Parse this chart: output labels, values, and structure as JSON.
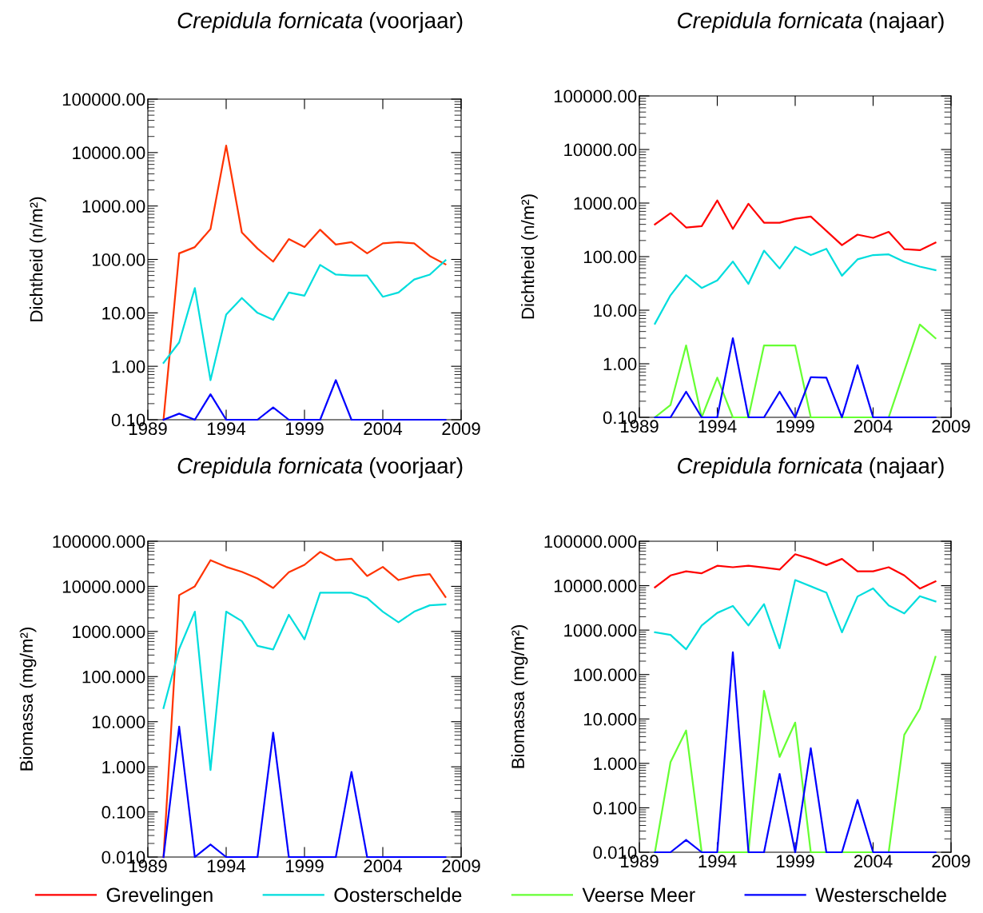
{
  "chart_data": [
    {
      "type": "line",
      "title": "Crepidula fornicata (voorjaar)",
      "ylabel": "Dichtheid (n/m²)",
      "log": "y",
      "xlim": [
        1989,
        2009
      ],
      "xticks": [
        1989,
        1994,
        1999,
        2004,
        2009
      ],
      "ylim": [
        0.1,
        100000
      ],
      "yticks": [
        {
          "value": 0.1,
          "label": "0.10"
        },
        {
          "value": 1,
          "label": "1.00"
        },
        {
          "value": 10,
          "label": "10.00"
        },
        {
          "value": 100,
          "label": "100.00"
        },
        {
          "value": 1000,
          "label": "1000.00"
        },
        {
          "value": 10000,
          "label": "10000.00"
        },
        {
          "value": 100000,
          "label": "100000.00"
        }
      ],
      "grid": false,
      "x": [
        1990,
        1991,
        1992,
        1993,
        1994,
        1995,
        1996,
        1997,
        1998,
        1999,
        2000,
        2001,
        2002,
        2003,
        2004,
        2005,
        2006,
        2007,
        2008
      ],
      "series": [
        {
          "color": "#ff3300",
          "values": [
            0.1,
            130,
            170,
            370,
            13500,
            320,
            160,
            91,
            240,
            170,
            360,
            190,
            210,
            130,
            200,
            210,
            200,
            116,
            81
          ]
        },
        {
          "color": "#00dddd",
          "values": [
            1.16,
            2.8,
            29,
            0.55,
            9.3,
            19,
            10,
            7.4,
            24,
            21,
            79,
            52,
            50,
            50,
            20,
            24,
            42,
            52,
            96
          ]
        },
        {
          "color": "#0000ff",
          "values": [
            0.1,
            0.13,
            0.1,
            0.3,
            0.1,
            0.1,
            0.1,
            0.17,
            0.1,
            0.1,
            0.1,
            0.55,
            0.1,
            0.1,
            0.1,
            0.1,
            0.1,
            0.1,
            0.1
          ]
        }
      ]
    },
    {
      "type": "line",
      "title": "Crepidula fornicata (najaar)",
      "ylabel": "Dichtheid (n/m²)",
      "log": "y",
      "xlim": [
        1989,
        2009
      ],
      "xticks": [
        1989,
        1994,
        1999,
        2004,
        2009
      ],
      "ylim": [
        0.1,
        100000
      ],
      "yticks": [
        {
          "value": 0.1,
          "label": "0.10"
        },
        {
          "value": 1,
          "label": "1.00"
        },
        {
          "value": 10,
          "label": "10.00"
        },
        {
          "value": 100,
          "label": "100.00"
        },
        {
          "value": 1000,
          "label": "1000.00"
        },
        {
          "value": 10000,
          "label": "10000.00"
        },
        {
          "value": 100000,
          "label": "100000.00"
        }
      ],
      "grid": false,
      "x": [
        1990,
        1991,
        1992,
        1993,
        1994,
        1995,
        1996,
        1997,
        1998,
        1999,
        2000,
        2001,
        2002,
        2003,
        2004,
        2005,
        2006,
        2007,
        2008
      ],
      "series": [
        {
          "color": "#ff0000",
          "x": [
            1990,
            1991,
            1992,
            1993,
            1994,
            1995,
            1996,
            1997,
            1998,
            1999,
            2000,
            2002,
            2003,
            2004,
            2005,
            2006,
            2007,
            2008
          ],
          "values": [
            400,
            650,
            350,
            370,
            1120,
            330,
            970,
            430,
            430,
            510,
            560,
            164,
            257,
            224,
            290,
            138,
            132,
            182
          ]
        },
        {
          "color": "#00dddd",
          "values": [
            5.6,
            19,
            45,
            26,
            36,
            81,
            31,
            129,
            60,
            153,
            107,
            140,
            44,
            89,
            107,
            110,
            80,
            65,
            56
          ]
        },
        {
          "color": "#66ff33",
          "x": [
            1990,
            1991,
            1992,
            1993,
            1994,
            1995,
            1996,
            1997,
            1998,
            1999,
            2000,
            2001,
            2002,
            2003,
            2004,
            2005,
            2007,
            2008
          ],
          "values": [
            0.1,
            0.17,
            2.2,
            0.1,
            0.55,
            0.1,
            0.1,
            2.2,
            2.2,
            2.2,
            0.1,
            0.1,
            0.1,
            0.1,
            0.1,
            0.1,
            5.4,
            3.0
          ]
        },
        {
          "color": "#0000ff",
          "values": [
            0.1,
            0.1,
            0.3,
            0.1,
            0.1,
            3.0,
            0.1,
            0.1,
            0.3,
            0.1,
            0.56,
            0.55,
            0.1,
            0.94,
            0.1,
            0.1,
            0.1,
            0.1,
            0.1
          ]
        }
      ]
    },
    {
      "type": "line",
      "title": "Crepidula fornicata (voorjaar)",
      "ylabel": "Biomassa (mg/m²)",
      "log": "y",
      "xlim": [
        1989,
        2009
      ],
      "xticks": [
        1989,
        1994,
        1999,
        2004,
        2009
      ],
      "ylim": [
        0.01,
        100000
      ],
      "yticks": [
        {
          "value": 0.01,
          "label": "0.010"
        },
        {
          "value": 0.1,
          "label": "0.100"
        },
        {
          "value": 1,
          "label": "1.000"
        },
        {
          "value": 10,
          "label": "10.000"
        },
        {
          "value": 100,
          "label": "100.000"
        },
        {
          "value": 1000,
          "label": "1000.000"
        },
        {
          "value": 10000,
          "label": "10000.000"
        },
        {
          "value": 100000,
          "label": "100000.000"
        }
      ],
      "grid": false,
      "x": [
        1990,
        1991,
        1992,
        1993,
        1994,
        1995,
        1996,
        1997,
        1998,
        1999,
        2000,
        2001,
        2002,
        2003,
        2004,
        2005,
        2006,
        2007,
        2008
      ],
      "series": [
        {
          "color": "#ff3300",
          "values": [
            0.01,
            6400,
            10000,
            38000,
            27000,
            21000,
            15000,
            9200,
            20500,
            30000,
            58000,
            38000,
            41000,
            17000,
            27000,
            13800,
            17000,
            18600,
            5800
          ]
        },
        {
          "color": "#00dddd",
          "values": [
            20,
            410,
            2750,
            0.85,
            2750,
            1700,
            480,
            400,
            2340,
            670,
            7200,
            7200,
            7200,
            5500,
            2750,
            1600,
            2750,
            3800,
            4000
          ]
        },
        {
          "color": "#0000ff",
          "values": [
            0.01,
            7.8,
            0.01,
            0.019,
            0.01,
            0.01,
            0.01,
            5.7,
            0.01,
            0.01,
            0.01,
            0.01,
            0.77,
            0.01,
            0.01,
            0.01,
            0.01,
            0.01,
            0.01
          ]
        }
      ]
    },
    {
      "type": "line",
      "title": "Crepidula fornicata (najaar)",
      "ylabel": "Biomassa (mg/m²)",
      "log": "y",
      "xlim": [
        1989,
        2009
      ],
      "xticks": [
        1989,
        1994,
        1999,
        2004,
        2009
      ],
      "ylim": [
        0.01,
        100000
      ],
      "yticks": [
        {
          "value": 0.01,
          "label": "0.010"
        },
        {
          "value": 0.1,
          "label": "0.100"
        },
        {
          "value": 1,
          "label": "1.000"
        },
        {
          "value": 10,
          "label": "10.000"
        },
        {
          "value": 100,
          "label": "100.000"
        },
        {
          "value": 1000,
          "label": "1000.000"
        },
        {
          "value": 10000,
          "label": "10000.000"
        },
        {
          "value": 100000,
          "label": "100000.000"
        }
      ],
      "grid": false,
      "legend": "bottom",
      "x": [
        1990,
        1991,
        1992,
        1993,
        1994,
        1995,
        1996,
        1997,
        1998,
        1999,
        2000,
        2001,
        2002,
        2003,
        2004,
        2005,
        2006,
        2007,
        2008
      ],
      "series": [
        {
          "name": "Grevelingen",
          "color": "#ff0000",
          "values": [
            9200,
            17000,
            21000,
            19000,
            28000,
            26000,
            28000,
            25700,
            23000,
            51000,
            40000,
            29000,
            40000,
            21000,
            21000,
            26000,
            17000,
            8600,
            12500
          ]
        },
        {
          "name": "Oosterschelde",
          "color": "#00dddd",
          "x": [
            1990,
            1991,
            1992,
            1993,
            1994,
            1995,
            1996,
            1997,
            1998,
            1999,
            2001,
            2002,
            2003,
            2004,
            2005,
            2006,
            2007,
            2008
          ],
          "values": [
            890,
            780,
            370,
            1270,
            2440,
            3500,
            1270,
            3850,
            390,
            13400,
            7000,
            890,
            5700,
            8700,
            3600,
            2370,
            5800,
            4430
          ]
        },
        {
          "name": "Veerse Meer",
          "color": "#66ff33",
          "values": [
            0.01,
            1.07,
            5.5,
            0.01,
            0.01,
            0.01,
            0.01,
            43,
            1.4,
            8.3,
            0.01,
            0.01,
            0.01,
            0.01,
            0.01,
            0.01,
            4.4,
            17,
            250
          ]
        },
        {
          "name": "Westerschelde",
          "color": "#0000ff",
          "values": [
            0.01,
            0.01,
            0.019,
            0.01,
            0.01,
            316,
            0.01,
            0.01,
            0.58,
            0.01,
            2.2,
            0.01,
            0.01,
            0.15,
            0.01,
            0.01,
            0.01,
            0.01,
            0.01
          ]
        }
      ]
    }
  ]
}
